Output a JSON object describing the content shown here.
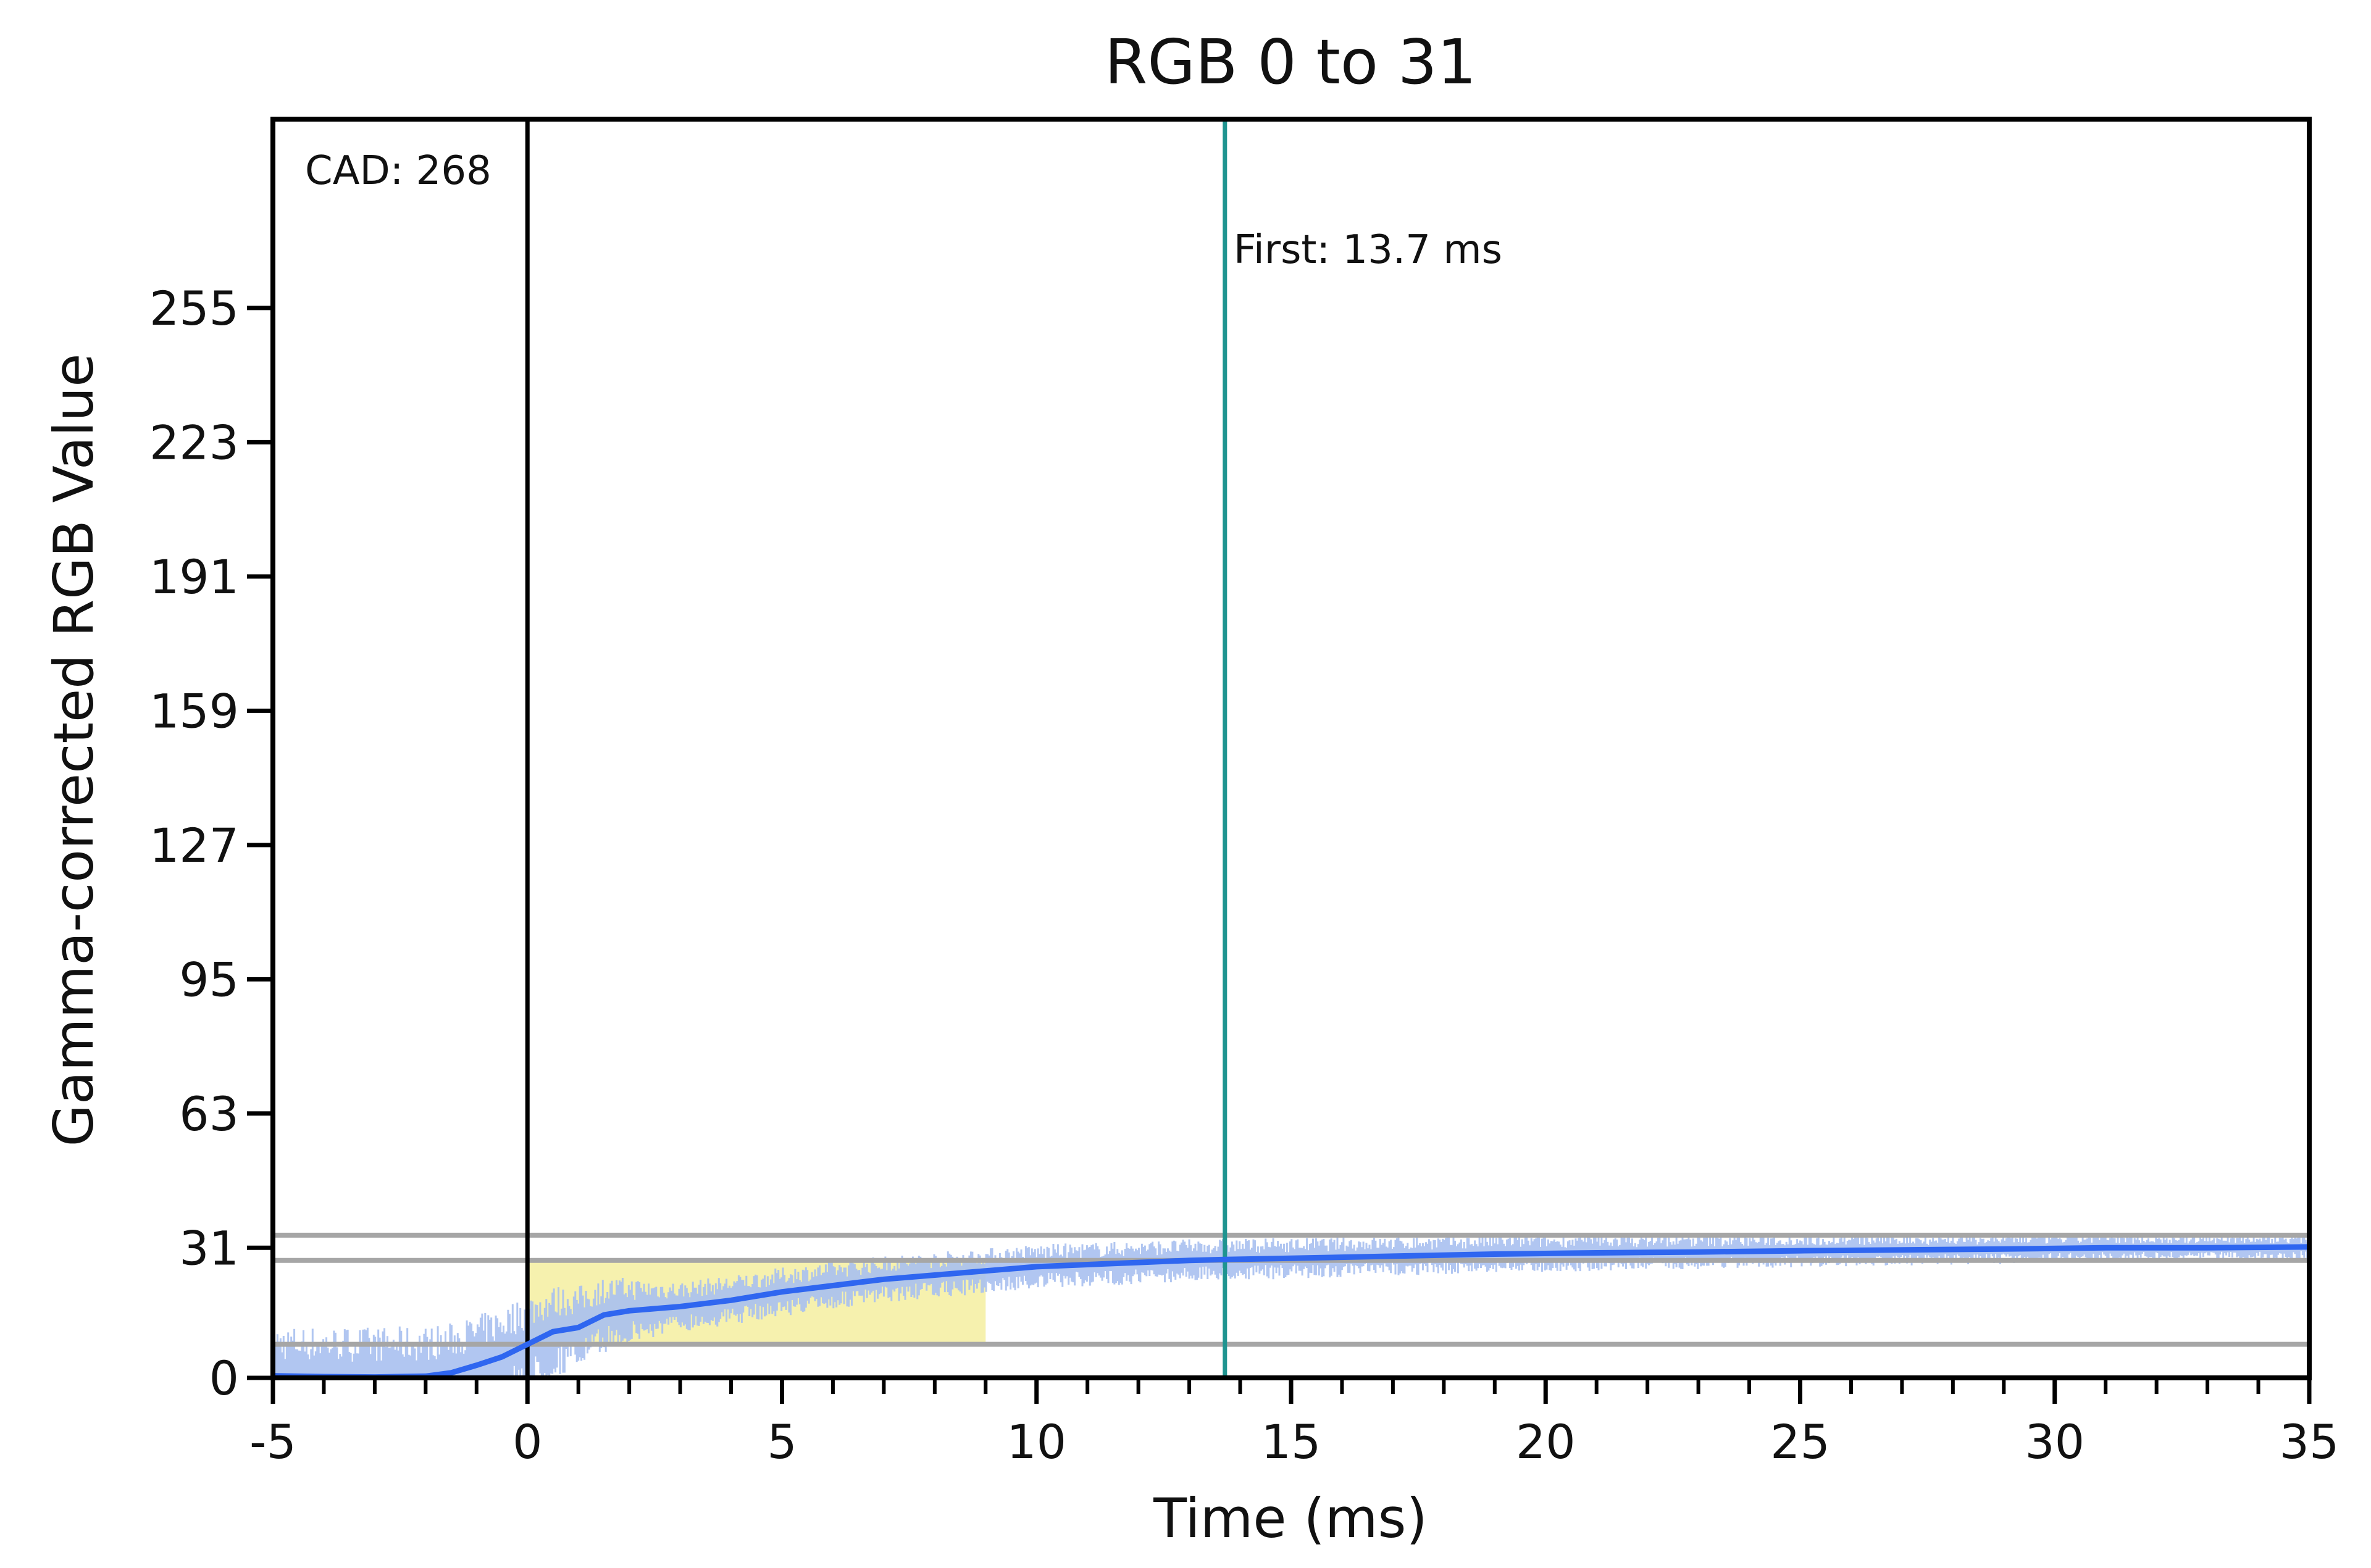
{
  "chart_data": {
    "type": "line",
    "title": "RGB 0 to 31",
    "xlabel": "Time (ms)",
    "ylabel": "Gamma-corrected RGB Value",
    "xlim": [
      -5,
      35
    ],
    "ylim": [
      0,
      300
    ],
    "xticks": [
      -5,
      0,
      5,
      10,
      15,
      20,
      25,
      30,
      35
    ],
    "xtick_labels": [
      "-5",
      "0",
      "5",
      "10",
      "15",
      "20",
      "25",
      "30",
      "35"
    ],
    "xminor_step": 1,
    "yticks": [
      0,
      31,
      63,
      95,
      127,
      159,
      191,
      223,
      255
    ],
    "ytick_labels": [
      "0",
      "31",
      "63",
      "95",
      "127",
      "159",
      "191",
      "223",
      "255"
    ],
    "grid": false,
    "colors": {
      "series": "#2f66f0",
      "raw": "#a8c0f0",
      "shade": "#f5eea0",
      "reference": "#a6a6a6",
      "cad_line": "#000000",
      "first_line": "#1f9490"
    },
    "reference_lines_y": [
      8,
      28,
      34
    ],
    "shaded_region": {
      "x": [
        0,
        9
      ],
      "y_low": 8,
      "y_high": 28
    },
    "markers": {
      "cad": {
        "x": 0,
        "label": "CAD: 268"
      },
      "first": {
        "x": 13.7,
        "label": "First: 13.7 ms"
      }
    },
    "series": [
      {
        "x": [
          -5,
          -4,
          -3,
          -2,
          -1.5,
          -1,
          -0.5,
          0,
          0.5,
          1,
          1.5,
          2,
          3,
          4,
          5,
          6,
          7,
          8,
          9,
          10,
          11,
          12,
          13,
          13.7,
          15,
          17,
          19,
          21,
          23,
          25,
          27,
          29,
          31,
          33,
          35
        ],
        "y": [
          0.5,
          0.3,
          0.2,
          0.4,
          1.2,
          3,
          5,
          8,
          11,
          12,
          15,
          16,
          17,
          18.5,
          20.5,
          22,
          23.5,
          24.5,
          25.5,
          26.5,
          27,
          27.5,
          28,
          28.2,
          28.5,
          29,
          29.5,
          29.8,
          30,
          30.3,
          30.5,
          30.7,
          31,
          31,
          31.2
        ]
      }
    ],
    "raw_noise_amplitude": [
      {
        "x": -5,
        "amp": 12
      },
      {
        "x": 0,
        "amp": 12
      },
      {
        "x": 3,
        "amp": 6
      },
      {
        "x": 35,
        "amp": 3
      }
    ]
  }
}
